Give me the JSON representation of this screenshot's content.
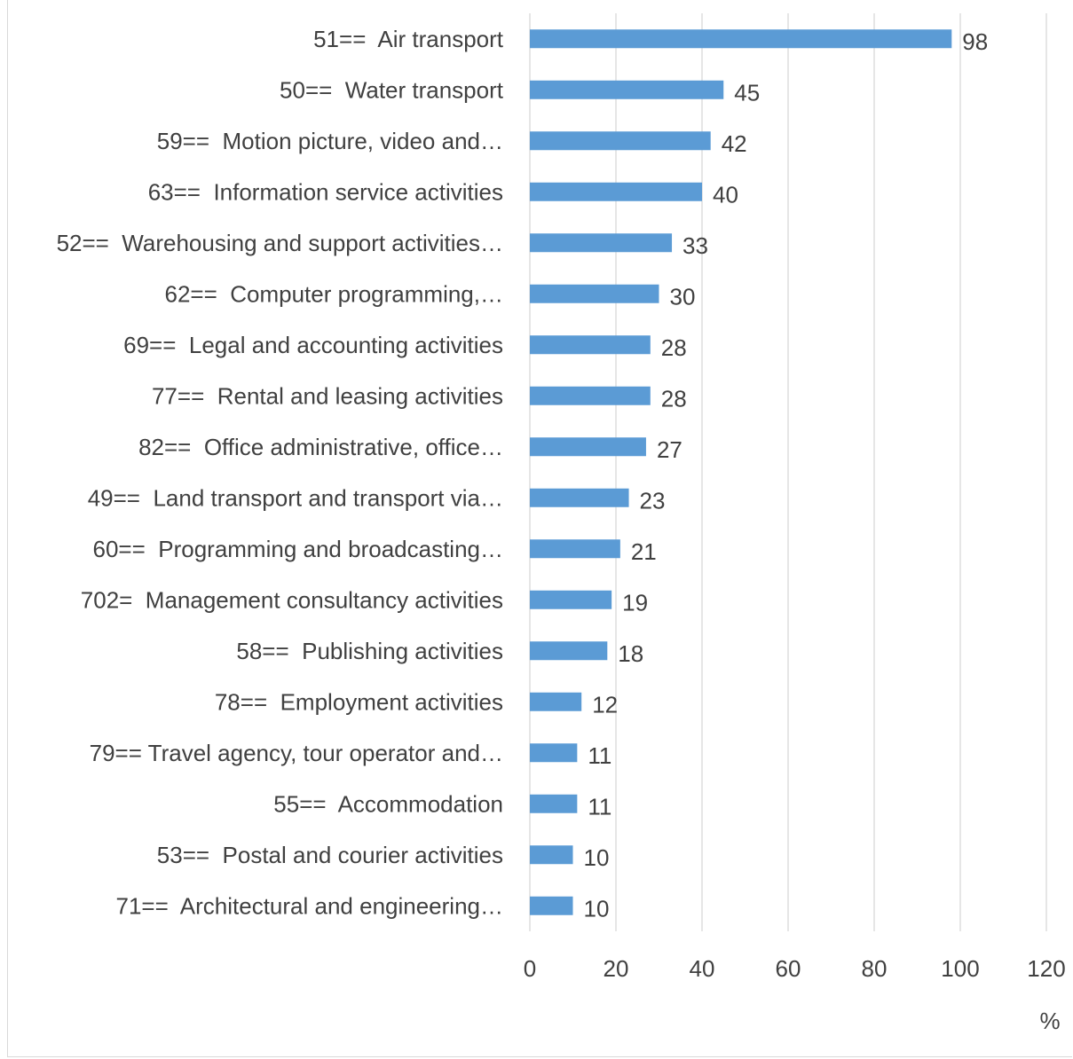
{
  "chart_data": {
    "type": "bar",
    "orientation": "horizontal",
    "categories": [
      "51==  Air transport",
      "50==  Water transport",
      "59==  Motion picture, video and…",
      "63==  Information service activities",
      "52==  Warehousing and support activities…",
      "62==  Computer programming,…",
      "69==  Legal and accounting activities",
      "77==  Rental and leasing activities",
      "82==  Office administrative, office…",
      "49==  Land transport and transport via…",
      "60==  Programming and broadcasting…",
      "702=  Management consultancy activities",
      "58==  Publishing activities",
      "78==  Employment activities",
      "79== Travel agency, tour operator and…",
      "55==  Accommodation",
      "53==  Postal and courier activities",
      "71==  Architectural and engineering…"
    ],
    "values": [
      98,
      45,
      42,
      40,
      33,
      30,
      28,
      28,
      27,
      23,
      21,
      19,
      18,
      12,
      11,
      11,
      10,
      10
    ],
    "xlabel": "%",
    "ylabel": "",
    "title": "",
    "xlim": [
      0,
      120
    ],
    "xticks": [
      0,
      20,
      40,
      60,
      80,
      100,
      120
    ],
    "grid": true,
    "legend": "none",
    "bar_color": "#5b9bd5",
    "grid_color": "#d9d9d9",
    "text_color": "#404040"
  }
}
